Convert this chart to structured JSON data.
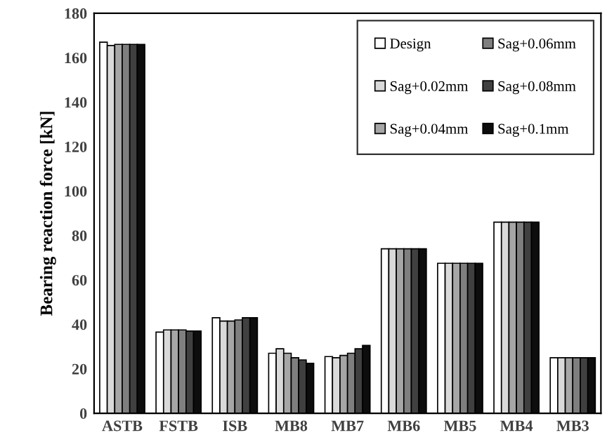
{
  "chart_data": {
    "type": "bar",
    "ylabel": "Bearing reaction force [kN]",
    "categories": [
      "ASTB",
      "FSTB",
      "ISB",
      "MB8",
      "MB7",
      "MB6",
      "MB5",
      "MB4",
      "MB3"
    ],
    "series": [
      {
        "name": "Design",
        "color": "#ffffff",
        "values": [
          167,
          36.5,
          43,
          27,
          25.5,
          74,
          67.5,
          86,
          25
        ]
      },
      {
        "name": "Sag+0.02mm",
        "color": "#d9d9d9",
        "values": [
          165.5,
          37.5,
          41.5,
          29,
          25,
          74,
          67.5,
          86,
          25
        ]
      },
      {
        "name": "Sag+0.04mm",
        "color": "#a6a6a6",
        "values": [
          166,
          37.5,
          41.5,
          27,
          26,
          74,
          67.5,
          86,
          25
        ]
      },
      {
        "name": "Sag+0.06mm",
        "color": "#7f7f7f",
        "values": [
          166,
          37.5,
          42,
          25,
          27,
          74,
          67.5,
          86,
          25
        ]
      },
      {
        "name": "Sag+0.08mm",
        "color": "#404040",
        "values": [
          166,
          37,
          43,
          24,
          29,
          74,
          67.5,
          86,
          25
        ]
      },
      {
        "name": "Sag+0.1mm",
        "color": "#0d0d0d",
        "values": [
          166,
          37,
          43,
          22.5,
          30.5,
          74,
          67.5,
          86,
          25
        ]
      }
    ],
    "ylim": [
      0,
      180
    ],
    "yticks": [
      0,
      20,
      40,
      60,
      80,
      100,
      120,
      140,
      160,
      180
    ],
    "grid": false,
    "legend": "top right"
  }
}
